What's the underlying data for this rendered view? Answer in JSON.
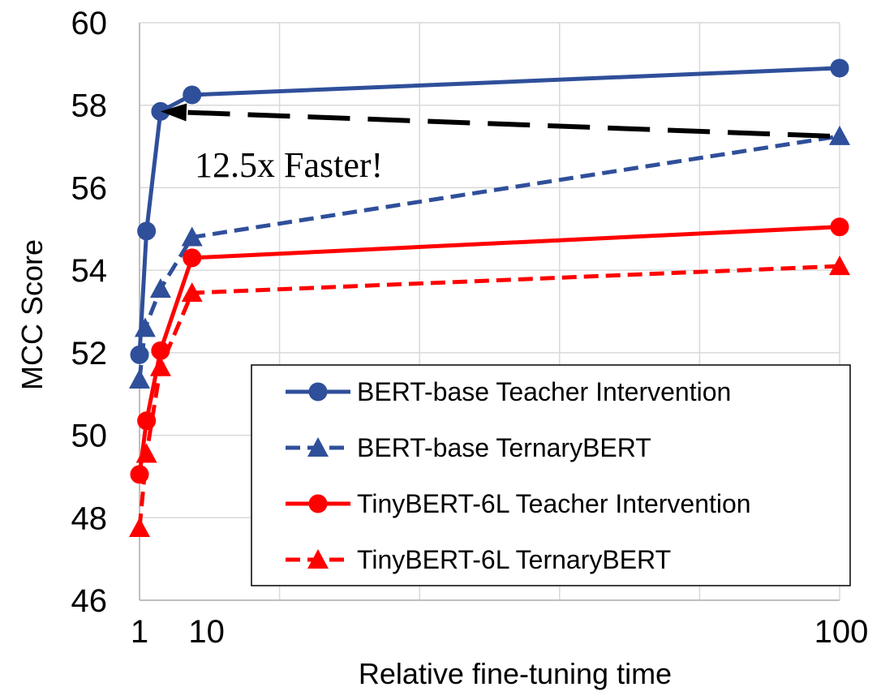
{
  "chart_data": {
    "type": "line",
    "xlabel": "Relative fine-tuning time",
    "ylabel": "MCC Score",
    "xlim": [
      0,
      100
    ],
    "ylim": [
      46,
      60
    ],
    "x_ticks": [
      0,
      20,
      40,
      60,
      80,
      100
    ],
    "x_tick_labels": [
      "1",
      "10",
      "",
      "",
      "",
      "100"
    ],
    "y_ticks": [
      46,
      48,
      50,
      52,
      54,
      56,
      58,
      60
    ],
    "y_tick_labels": [
      "46",
      "48",
      "50",
      "52",
      "54",
      "56",
      "58",
      "60"
    ],
    "grid": true,
    "legend_position": "bottom-right",
    "series": [
      {
        "name": "BERT-base Teacher Intervention",
        "color": "#2F4F9A",
        "line": "solid",
        "marker": "circle",
        "x": [
          0,
          1,
          3,
          7.5,
          100
        ],
        "y": [
          51.95,
          54.95,
          57.85,
          58.25,
          58.9
        ]
      },
      {
        "name": "BERT-base TernaryBERT",
        "color": "#2F4F9A",
        "line": "dashed",
        "marker": "triangle",
        "x": [
          0,
          0.8,
          3,
          7.5,
          100
        ],
        "y": [
          51.35,
          52.6,
          53.55,
          54.8,
          57.25
        ]
      },
      {
        "name": "TinyBERT-6L Teacher Intervention",
        "color": "#FF0000",
        "line": "solid",
        "marker": "circle",
        "x": [
          0,
          1,
          3,
          7.5,
          100
        ],
        "y": [
          49.05,
          50.35,
          52.05,
          54.3,
          55.05
        ]
      },
      {
        "name": "TinyBERT-6L TernaryBERT",
        "color": "#FF0000",
        "line": "dashed",
        "marker": "triangle",
        "x": [
          0,
          1,
          3,
          7.5,
          100
        ],
        "y": [
          47.75,
          49.55,
          51.65,
          53.45,
          54.1
        ]
      }
    ],
    "annotations": [
      {
        "text": "12.5x Faster!",
        "arrow_from": [
          100,
          57.25
        ],
        "arrow_to": [
          3,
          57.85
        ]
      }
    ]
  }
}
